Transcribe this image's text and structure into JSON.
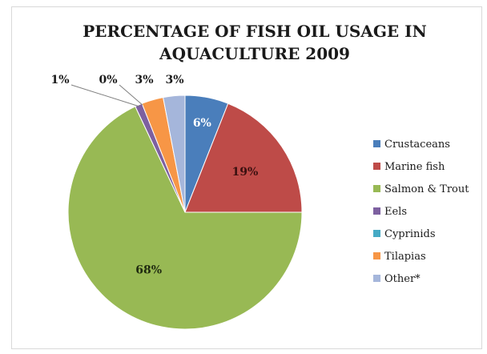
{
  "chart_data": {
    "type": "pie",
    "title": "PERCENTAGE OF FISH OIL USAGE IN AQUACULTURE 2009",
    "title_lines": [
      "PERCENTAGE OF FISH OIL USAGE IN",
      "AQUACULTURE 2009"
    ],
    "categories": [
      "Crustaceans",
      "Marine fish",
      "Salmon & Trout",
      "Eels",
      "Cyprinids",
      "Tilapias",
      "Other*"
    ],
    "values": [
      6,
      19,
      68,
      1,
      0,
      3,
      3
    ],
    "labels": [
      "6%",
      "19%",
      "68%",
      "1%",
      "0%",
      "3%",
      "3%"
    ],
    "colors": [
      "#4a7ebb",
      "#be4b48",
      "#98b954",
      "#7d60a0",
      "#46aac5",
      "#f79646",
      "#a5b6db"
    ],
    "label_colors": [
      "#ffffff",
      "#3a1010",
      "#1f2a10",
      "#1a1a1a",
      "#1a1a1a",
      "#1a1a1a",
      "#1a1a1a"
    ],
    "legend_position": "right",
    "start_angle_deg": 0,
    "direction": "clockwise"
  }
}
